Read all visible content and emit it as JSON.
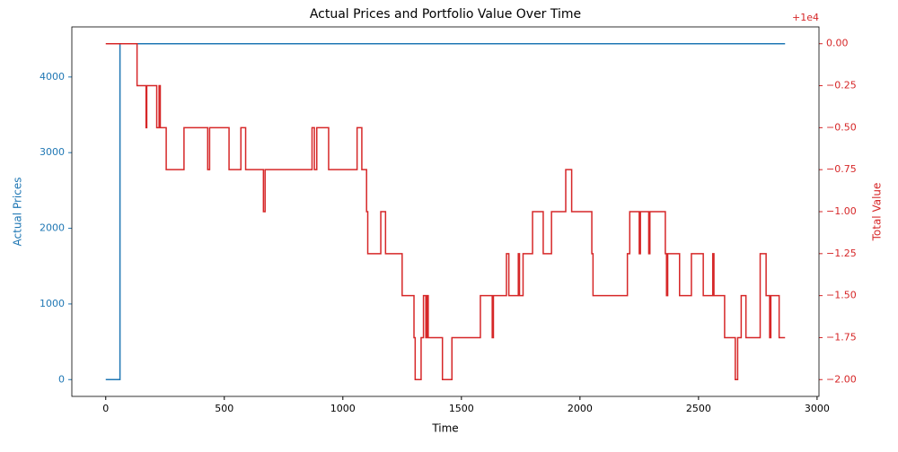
{
  "chart_data": {
    "type": "line",
    "title": "Actual Prices and Portfolio Value Over Time",
    "x_label": "Time",
    "y_label": "Actual Prices",
    "y2_label": "Total Value",
    "y2_offset_label": "+1e4",
    "step": true,
    "xlim": [
      -143,
      3008
    ],
    "xticks": [
      0,
      500,
      1000,
      1500,
      2000,
      2500,
      3000
    ],
    "ylim": [
      -222,
      4662
    ],
    "yticks": [
      0,
      1000,
      2000,
      3000,
      4000
    ],
    "y2lim": [
      9997.9,
      10000.1
    ],
    "y2ticks": [
      {
        "value": 10000,
        "label": "0.00"
      },
      {
        "value": 9999.75,
        "label": "−0.25"
      },
      {
        "value": 9999.5,
        "label": "−0.50"
      },
      {
        "value": 9999.25,
        "label": "−0.75"
      },
      {
        "value": 9999,
        "label": "−1.00"
      },
      {
        "value": 9998.75,
        "label": "−1.25"
      },
      {
        "value": 9998.5,
        "label": "−1.50"
      },
      {
        "value": 9998.25,
        "label": "−1.75"
      },
      {
        "value": 9998,
        "label": "−2.00"
      }
    ],
    "series": [
      {
        "name": "Actual Prices",
        "color": "#1f77b4",
        "axis": "y",
        "x": [
          0,
          60,
          2865
        ],
        "values": [
          0,
          4440,
          4440
        ]
      },
      {
        "name": "Total Value",
        "color": "#d62728",
        "axis": "y2",
        "x": [
          0,
          132,
          170,
          173,
          215,
          225,
          230,
          255,
          330,
          430,
          438,
          520,
          570,
          590,
          665,
          672,
          870,
          880,
          890,
          940,
          1060,
          1080,
          1100,
          1105,
          1160,
          1180,
          1250,
          1300,
          1305,
          1330,
          1340,
          1350,
          1355,
          1360,
          1420,
          1460,
          1580,
          1630,
          1635,
          1690,
          1700,
          1740,
          1745,
          1760,
          1800,
          1845,
          1880,
          1940,
          1965,
          2050,
          2055,
          2200,
          2210,
          2250,
          2255,
          2290,
          2295,
          2360,
          2365,
          2370,
          2420,
          2470,
          2520,
          2560,
          2565,
          2610,
          2655,
          2665,
          2680,
          2700,
          2760,
          2785,
          2800,
          2805,
          2840,
          2865
        ],
        "values": [
          10000,
          9999.75,
          9999.5,
          9999.75,
          9999.5,
          9999.75,
          9999.5,
          9999.25,
          9999.5,
          9999.25,
          9999.5,
          9999.25,
          9999.5,
          9999.25,
          9999,
          9999.25,
          9999.5,
          9999.25,
          9999.5,
          9999.25,
          9999.5,
          9999.25,
          9999,
          9998.75,
          9999,
          9998.75,
          9998.5,
          9998.25,
          9998,
          9998.25,
          9998.5,
          9998.25,
          9998.5,
          9998.25,
          9998,
          9998.25,
          9998.5,
          9998.25,
          9998.5,
          9998.75,
          9998.5,
          9998.75,
          9998.5,
          9998.75,
          9999,
          9998.75,
          9999,
          9999.25,
          9999,
          9998.75,
          9998.5,
          9998.75,
          9999,
          9998.75,
          9999,
          9998.75,
          9999,
          9998.75,
          9998.5,
          9998.75,
          9998.5,
          9998.75,
          9998.5,
          9998.75,
          9998.5,
          9998.25,
          9998,
          9998.25,
          9998.5,
          9998.25,
          9998.75,
          9998.5,
          9998.25,
          9998.5,
          9998.25,
          9998.25
        ]
      }
    ]
  }
}
